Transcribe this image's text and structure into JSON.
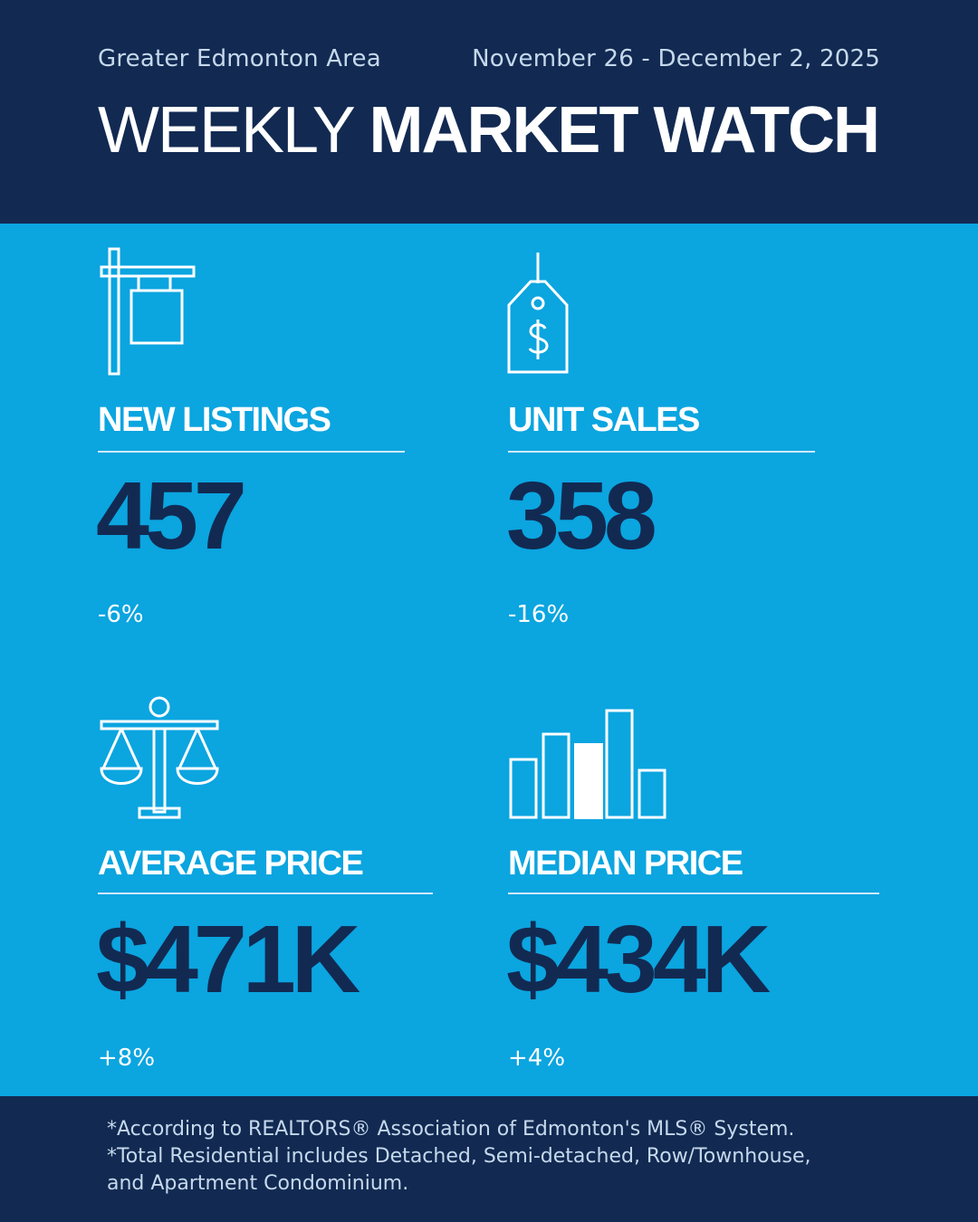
{
  "header": {
    "region": "Greater Edmonton Area",
    "dates": "November 26 - December 2, 2025",
    "title_light": "WEEKLY",
    "title_bold": "MARKET WATCH"
  },
  "stats": {
    "new_listings": {
      "label": "NEW LISTINGS",
      "value": "457",
      "change": "-6%",
      "icon": "for-sale-sign-icon"
    },
    "unit_sales": {
      "label": "UNIT SALES",
      "value": "358",
      "change": "-16%",
      "icon": "price-tag-icon"
    },
    "average_price": {
      "label": "AVERAGE PRICE",
      "value": "$471K",
      "change": "+8%",
      "icon": "scales-icon"
    },
    "median_price": {
      "label": "MEDIAN PRICE",
      "value": "$434K",
      "change": "+4%",
      "icon": "bar-chart-icon"
    }
  },
  "footer": {
    "note1": "*According to REALTORS® Association of Edmonton's MLS® System.",
    "note2": "*Total Residential includes Detached, Semi-detached, Row/Townhouse,",
    "note3": "and Apartment Condominium."
  },
  "colors": {
    "navy": "#122a52",
    "sky": "#0ba5e0",
    "white": "#ffffff"
  }
}
